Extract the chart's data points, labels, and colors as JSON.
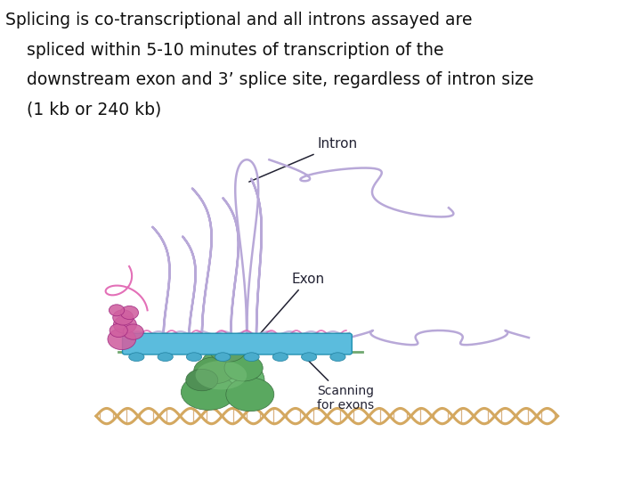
{
  "title_lines": [
    "Splicing is co-transcriptional and all introns assayed are",
    "    spliced within 5-10 minutes of transcription of the",
    "    downstream exon and 3’ splice site, regardless of intron size",
    "    (1 kb or 240 kb)"
  ],
  "title_fontsize": 13.5,
  "bg_color": "#ffffff",
  "text_color": "#111111",
  "rna_color": "#B8A8D8",
  "exon_color": "#5BBCDD",
  "exon_edge": "#2090B0",
  "dna_color": "#D4A860",
  "green_blob": "#6aA870",
  "pink_color": "#D060A0",
  "label_color": "#222233",
  "label_intron": "Intron",
  "label_exon": "Exon",
  "label_scanning": "Scanning\nfor exons"
}
